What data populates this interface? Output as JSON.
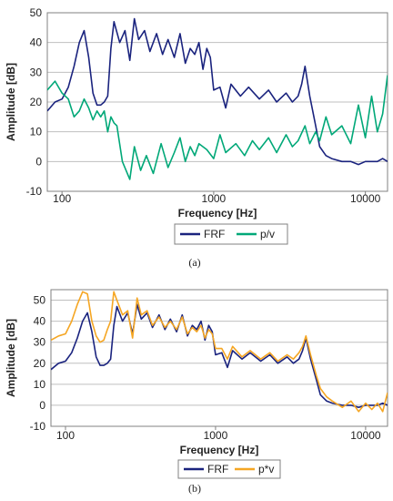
{
  "chart_data": [
    {
      "type": "line",
      "panel_label": "(a)",
      "xlabel": "Frequency [Hz]",
      "ylabel": "Amplitude [dB]",
      "xscale": "log",
      "xlim": [
        80,
        14000
      ],
      "ylim": [
        -10,
        50
      ],
      "xticks": [
        100,
        1000,
        10000
      ],
      "xtick_labels": [
        "100",
        "1000",
        "10000"
      ],
      "yticks": [
        -10,
        0,
        10,
        20,
        30,
        40,
        50
      ],
      "grid": "horizontal",
      "legend_position": "bottom",
      "series": [
        {
          "name": "FRF",
          "color": "#1a237e",
          "x": [
            80,
            90,
            100,
            110,
            120,
            130,
            140,
            150,
            160,
            170,
            180,
            190,
            200,
            210,
            220,
            240,
            260,
            280,
            300,
            320,
            350,
            380,
            420,
            460,
            500,
            550,
            600,
            650,
            700,
            750,
            800,
            850,
            900,
            950,
            1000,
            1100,
            1200,
            1300,
            1500,
            1700,
            2000,
            2300,
            2600,
            3000,
            3300,
            3600,
            3800,
            4000,
            4300,
            4700,
            5000,
            5500,
            6000,
            7000,
            8000,
            9000,
            10000,
            11000,
            12000,
            13000,
            14000
          ],
          "y": [
            17,
            20,
            21,
            25,
            32,
            40,
            44,
            35,
            23,
            19,
            19,
            20,
            22,
            38,
            47,
            40,
            44,
            34,
            48,
            41,
            44,
            37,
            43,
            36,
            41,
            35,
            43,
            33,
            38,
            36,
            40,
            31,
            38,
            35,
            24,
            25,
            18,
            26,
            22,
            25,
            21,
            24,
            20,
            23,
            20,
            22,
            26,
            32,
            22,
            12,
            5,
            2,
            1,
            0,
            0,
            -1,
            0,
            0,
            0,
            1,
            0
          ]
        },
        {
          "name": "p/v",
          "color": "#00a878",
          "x": [
            80,
            90,
            100,
            110,
            120,
            130,
            140,
            150,
            160,
            170,
            180,
            190,
            200,
            210,
            220,
            230,
            250,
            280,
            300,
            330,
            360,
            400,
            450,
            500,
            550,
            600,
            650,
            700,
            750,
            800,
            900,
            1000,
            1100,
            1200,
            1400,
            1600,
            1800,
            2000,
            2300,
            2600,
            3000,
            3300,
            3600,
            4000,
            4300,
            4700,
            5000,
            5500,
            6000,
            7000,
            8000,
            9000,
            10000,
            11000,
            12000,
            13000,
            14000
          ],
          "y": [
            24,
            27,
            23,
            21,
            15,
            17,
            21,
            18,
            14,
            17,
            15,
            17,
            10,
            15,
            13,
            12,
            0,
            -6,
            5,
            -3,
            2,
            -4,
            6,
            -2,
            3,
            8,
            0,
            5,
            2,
            6,
            4,
            1,
            9,
            3,
            6,
            2,
            7,
            4,
            8,
            3,
            9,
            5,
            7,
            12,
            6,
            10,
            7,
            15,
            9,
            12,
            6,
            19,
            8,
            22,
            10,
            16,
            29
          ]
        }
      ]
    },
    {
      "type": "line",
      "panel_label": "(b)",
      "xlabel": "Frequency [Hz]",
      "ylabel": "Amplitude [dB]",
      "xscale": "log",
      "xlim": [
        80,
        14000
      ],
      "ylim": [
        -10,
        55
      ],
      "xticks": [
        100,
        1000,
        10000
      ],
      "xtick_labels": [
        "100",
        "1000",
        "10000"
      ],
      "yticks": [
        -10,
        0,
        10,
        20,
        30,
        40,
        50
      ],
      "grid": "horizontal",
      "legend_position": "bottom",
      "series": [
        {
          "name": "FRF",
          "color": "#1a237e",
          "x": [
            80,
            90,
            100,
            110,
            120,
            130,
            140,
            150,
            160,
            170,
            180,
            190,
            200,
            210,
            220,
            240,
            260,
            280,
            300,
            320,
            350,
            380,
            420,
            460,
            500,
            550,
            600,
            650,
            700,
            750,
            800,
            850,
            900,
            950,
            1000,
            1100,
            1200,
            1300,
            1500,
            1700,
            2000,
            2300,
            2600,
            3000,
            3300,
            3600,
            3800,
            4000,
            4300,
            4700,
            5000,
            5500,
            6000,
            7000,
            8000,
            9000,
            10000,
            11000,
            12000,
            13000,
            14000
          ],
          "y": [
            17,
            20,
            21,
            25,
            32,
            40,
            44,
            35,
            23,
            19,
            19,
            20,
            22,
            38,
            47,
            40,
            44,
            34,
            48,
            41,
            44,
            37,
            43,
            36,
            41,
            35,
            43,
            33,
            38,
            36,
            40,
            31,
            38,
            35,
            24,
            25,
            18,
            26,
            22,
            25,
            21,
            24,
            20,
            23,
            20,
            22,
            26,
            32,
            22,
            12,
            5,
            2,
            1,
            0,
            0,
            -1,
            0,
            0,
            0,
            1,
            0
          ]
        },
        {
          "name": "p*v",
          "color": "#f5a623",
          "x": [
            80,
            90,
            100,
            110,
            120,
            130,
            140,
            150,
            160,
            170,
            180,
            190,
            200,
            210,
            220,
            240,
            260,
            280,
            300,
            320,
            350,
            380,
            420,
            460,
            500,
            550,
            600,
            650,
            700,
            750,
            800,
            850,
            900,
            950,
            1000,
            1100,
            1200,
            1300,
            1500,
            1700,
            2000,
            2300,
            2600,
            3000,
            3300,
            3600,
            3800,
            4000,
            4300,
            4700,
            5000,
            5500,
            6000,
            7000,
            8000,
            9000,
            10000,
            11000,
            12000,
            13000,
            14000
          ],
          "y": [
            31,
            33,
            34,
            40,
            48,
            54,
            53,
            40,
            33,
            30,
            31,
            36,
            40,
            54,
            50,
            43,
            45,
            32,
            51,
            43,
            45,
            38,
            42,
            37,
            40,
            36,
            42,
            34,
            37,
            35,
            38,
            32,
            36,
            34,
            27,
            27,
            22,
            28,
            23,
            26,
            22,
            25,
            21,
            24,
            22,
            25,
            28,
            33,
            24,
            14,
            8,
            4,
            2,
            -1,
            2,
            -3,
            1,
            -2,
            1,
            -3,
            6
          ]
        }
      ]
    }
  ]
}
